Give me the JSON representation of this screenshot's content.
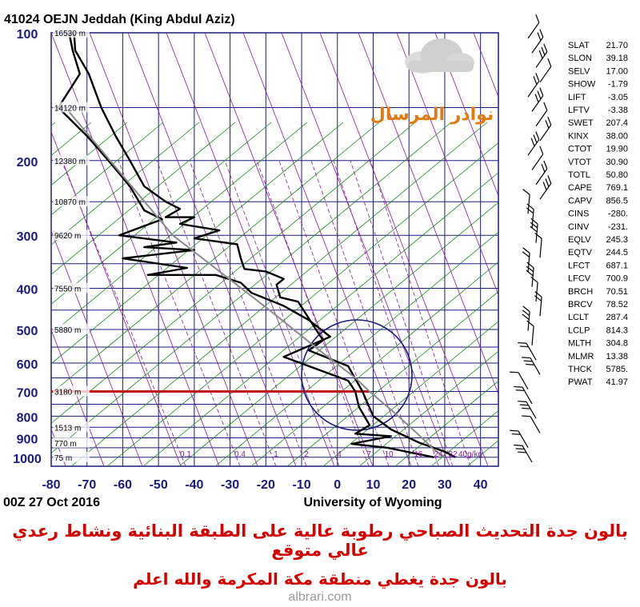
{
  "chart_data": {
    "type": "line",
    "title": "41024 OEJN Jeddah (King Abdul Aziz)",
    "date_label": "00Z 27 Oct 2016",
    "source_label": "University of Wyoming",
    "x_ticks": [
      -80,
      -70,
      -60,
      -50,
      -40,
      -30,
      -20,
      -10,
      0,
      10,
      20,
      30,
      40
    ],
    "xlim": [
      -80,
      45
    ],
    "y_ticks": [
      100,
      200,
      300,
      400,
      500,
      600,
      700,
      800,
      900,
      1000
    ],
    "ylim": [
      100,
      1050
    ],
    "y_scale": "log",
    "height_labels": [
      {
        "p": 100,
        "text": "16530 m"
      },
      {
        "p": 150,
        "text": "14120 m"
      },
      {
        "p": 200,
        "text": "12380 m"
      },
      {
        "p": 250,
        "text": "10870 m"
      },
      {
        "p": 300,
        "text": "9620 m"
      },
      {
        "p": 400,
        "text": "7550 m"
      },
      {
        "p": 500,
        "text": "5880 m"
      },
      {
        "p": 700,
        "text": "3180 m"
      },
      {
        "p": 850,
        "text": "1513 m"
      },
      {
        "p": 925,
        "text": "770 m"
      },
      {
        "p": 1000,
        "text": "75 m"
      }
    ],
    "mixing_ratio_labels": [
      "0.1",
      "0.4",
      "1",
      "2",
      "4",
      "7",
      "10",
      "16",
      "24",
      "32",
      "40g/kg"
    ],
    "series": [
      {
        "values": [
          [
            -73.6,
            100
          ],
          [
            -73.3,
            110
          ],
          [
            -69.5,
            125
          ],
          [
            -66,
            150
          ],
          [
            -62,
            175
          ],
          [
            -58,
            200
          ],
          [
            -54,
            230
          ],
          [
            -48,
            250
          ],
          [
            -44,
            260
          ],
          [
            -48,
            272
          ],
          [
            -40,
            272
          ],
          [
            -44,
            282
          ],
          [
            -33,
            292
          ],
          [
            -40,
            305
          ],
          [
            -28,
            315
          ],
          [
            -27,
            340
          ],
          [
            -26,
            360
          ],
          [
            -20,
            365
          ],
          [
            -15,
            380
          ],
          [
            -17,
            392
          ],
          [
            -16,
            420
          ],
          [
            -11,
            430
          ],
          [
            -6,
            500
          ],
          [
            -4,
            530
          ],
          [
            -8,
            560
          ],
          [
            3,
            610
          ],
          [
            7,
            700
          ],
          [
            10,
            800
          ],
          [
            15,
            860
          ],
          [
            23,
            925
          ],
          [
            30,
            970
          ],
          [
            33,
            1000
          ]
        ]
      },
      {
        "values": [
          [
            -75,
            100
          ],
          [
            -74,
            110
          ],
          [
            -72,
            125
          ],
          [
            -78,
            150
          ],
          [
            -70,
            175
          ],
          [
            -64,
            200
          ],
          [
            -58,
            230
          ],
          [
            -54,
            262
          ],
          [
            -49,
            275
          ],
          [
            -61,
            300
          ],
          [
            -45,
            312
          ],
          [
            -54,
            320
          ],
          [
            -40,
            325
          ],
          [
            -60,
            340
          ],
          [
            -42,
            358
          ],
          [
            -53,
            372
          ],
          [
            -34,
            372
          ],
          [
            -27,
            388
          ],
          [
            -24,
            410
          ],
          [
            -15,
            440
          ],
          [
            -8,
            475
          ],
          [
            -2,
            520
          ],
          [
            -15,
            580
          ],
          [
            3,
            660
          ],
          [
            5,
            700
          ],
          [
            6,
            760
          ],
          [
            9,
            840
          ],
          [
            5,
            880
          ],
          [
            15,
            892
          ],
          [
            4,
            930
          ],
          [
            14,
            950
          ],
          [
            27,
            1000
          ]
        ]
      },
      {
        "values": [
          [
            -76,
            150
          ],
          [
            -46,
            300
          ],
          [
            -19,
            450
          ],
          [
            -5,
            560
          ],
          [
            5,
            650
          ],
          [
            9,
            700
          ],
          [
            17,
            800
          ],
          [
            23,
            890
          ],
          [
            27,
            960
          ],
          [
            30,
            1000
          ]
        ]
      }
    ],
    "lcl_pressure": 700,
    "wind_barbs": 30,
    "indices": [
      {
        "label": "SLAT",
        "value": "21.70"
      },
      {
        "label": "SLON",
        "value": "39.18"
      },
      {
        "label": "SELV",
        "value": "17.00"
      },
      {
        "label": "SHOW",
        "value": "-1.79"
      },
      {
        "label": "LIFT",
        "value": "-3.05"
      },
      {
        "label": "LFTV",
        "value": "-3.38"
      },
      {
        "label": "SWET",
        "value": "207.4"
      },
      {
        "label": "KINX",
        "value": "38.00"
      },
      {
        "label": "CTOT",
        "value": "19.90"
      },
      {
        "label": "VTOT",
        "value": "30.90"
      },
      {
        "label": "TOTL",
        "value": "50.80"
      },
      {
        "label": "CAPE",
        "value": "769.1"
      },
      {
        "label": "CAPV",
        "value": "856.5"
      },
      {
        "label": "CINS",
        "value": "-280."
      },
      {
        "label": "CINV",
        "value": "-231."
      },
      {
        "label": "EQLV",
        "value": "245.3"
      },
      {
        "label": "EQTV",
        "value": "244.5"
      },
      {
        "label": "LFCT",
        "value": "687.1"
      },
      {
        "label": "LFCV",
        "value": "700.9"
      },
      {
        "label": "BRCH",
        "value": "70.51"
      },
      {
        "label": "BRCV",
        "value": "78.52"
      },
      {
        "label": "LCLT",
        "value": "287.4"
      },
      {
        "label": "LCLP",
        "value": "814.3"
      },
      {
        "label": "MLTH",
        "value": "304.8"
      },
      {
        "label": "MLMR",
        "value": "13.38"
      },
      {
        "label": "THCK",
        "value": "5785."
      },
      {
        "label": "PWAT",
        "value": "41.97"
      }
    ]
  },
  "captions": {
    "line1": "بالون جدة التحديث الصباحي  رطوبة عالية على الطبقة البنائية ونشاط رعدي عالي متوقع",
    "line2": "بالون جدة يغطي منطقة مكة المكرمة والله اعلم",
    "footer": "albrari.com",
    "logo_text": "نوادر المرسال"
  },
  "colors": {
    "isobar": "#1a1a7e",
    "dry_adiabat": "#1a8a1a",
    "moist_adiabat": "#8a1a9a",
    "caption": "#d40000",
    "lcl_line": "#c01818",
    "parcel": "#8a8a8a",
    "circle": "#1a1a7e",
    "logo": "#e07a10"
  }
}
